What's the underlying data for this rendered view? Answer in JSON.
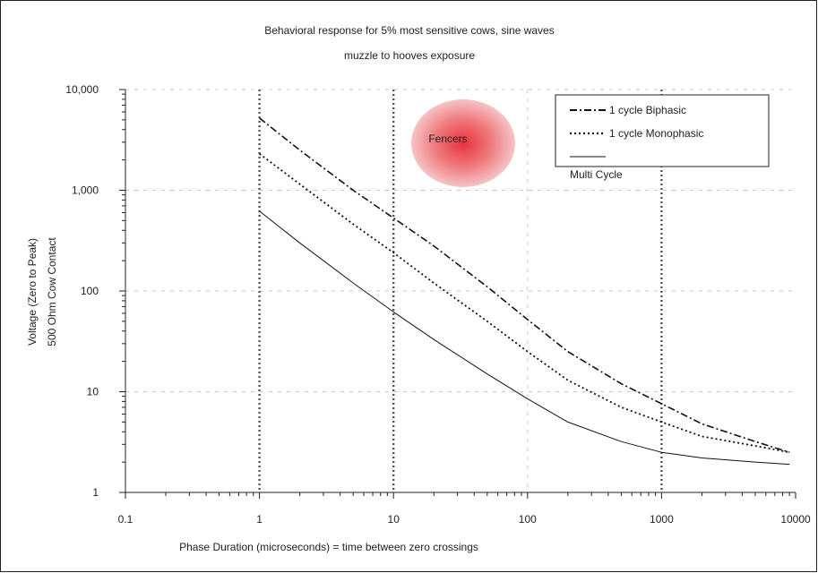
{
  "chart_data": {
    "type": "line",
    "title": "Behavioral response for 5% most sensitive cows, sine waves",
    "subtitle": "muzzle to hooves exposure",
    "xlabel": "Phase Duration (microseconds) = time between zero crossings",
    "ylabel_line1": "Voltage (Zero to Peak)",
    "ylabel_line2": "500 Ohm Cow Contact",
    "x_scale": "log",
    "y_scale": "log",
    "xlim": [
      0.1,
      10000
    ],
    "ylim": [
      1,
      10000
    ],
    "x_ticks": [
      0.1,
      1,
      10,
      100,
      1000,
      10000
    ],
    "x_tick_labels": [
      "0.1",
      "1",
      "10",
      "100",
      "1000",
      "10000"
    ],
    "y_ticks": [
      1,
      10,
      100,
      1000,
      10000
    ],
    "y_tick_labels": [
      "1",
      "10",
      "100",
      "1,000",
      "10,000"
    ],
    "gridlines": "vertical dotted at 1, 10, 1000 (major); faint horizontal dashed",
    "legend_position": "top-right",
    "annotation": {
      "text": "Fencers",
      "color": "#e84a4a",
      "x": 35,
      "y": 3000
    },
    "series": [
      {
        "name": "1 cycle Biphasic",
        "style": "dash-dot",
        "color": "#111111",
        "x": [
          1,
          2,
          5,
          10,
          20,
          50,
          100,
          200,
          500,
          1000,
          2000,
          5000,
          9000
        ],
        "y": [
          5200,
          2500,
          1000,
          530,
          280,
          110,
          52,
          25,
          12,
          7.6,
          4.8,
          3.2,
          2.5
        ]
      },
      {
        "name": "1 cycle Monophasic",
        "style": "dotted",
        "color": "#111111",
        "x": [
          1,
          2,
          5,
          10,
          20,
          50,
          100,
          200,
          500,
          1000,
          2000,
          5000,
          9000
        ],
        "y": [
          2300,
          1150,
          460,
          240,
          120,
          50,
          25,
          13,
          7,
          5,
          3.6,
          2.9,
          2.5
        ]
      },
      {
        "name": "Multi Cycle",
        "style": "solid",
        "color": "#111111",
        "x": [
          1,
          2,
          5,
          10,
          20,
          50,
          100,
          200,
          500,
          1000,
          2000,
          5000,
          9000
        ],
        "y": [
          620,
          300,
          120,
          62,
          33,
          15,
          8.5,
          5,
          3.2,
          2.5,
          2.2,
          2.0,
          1.9
        ]
      }
    ]
  }
}
